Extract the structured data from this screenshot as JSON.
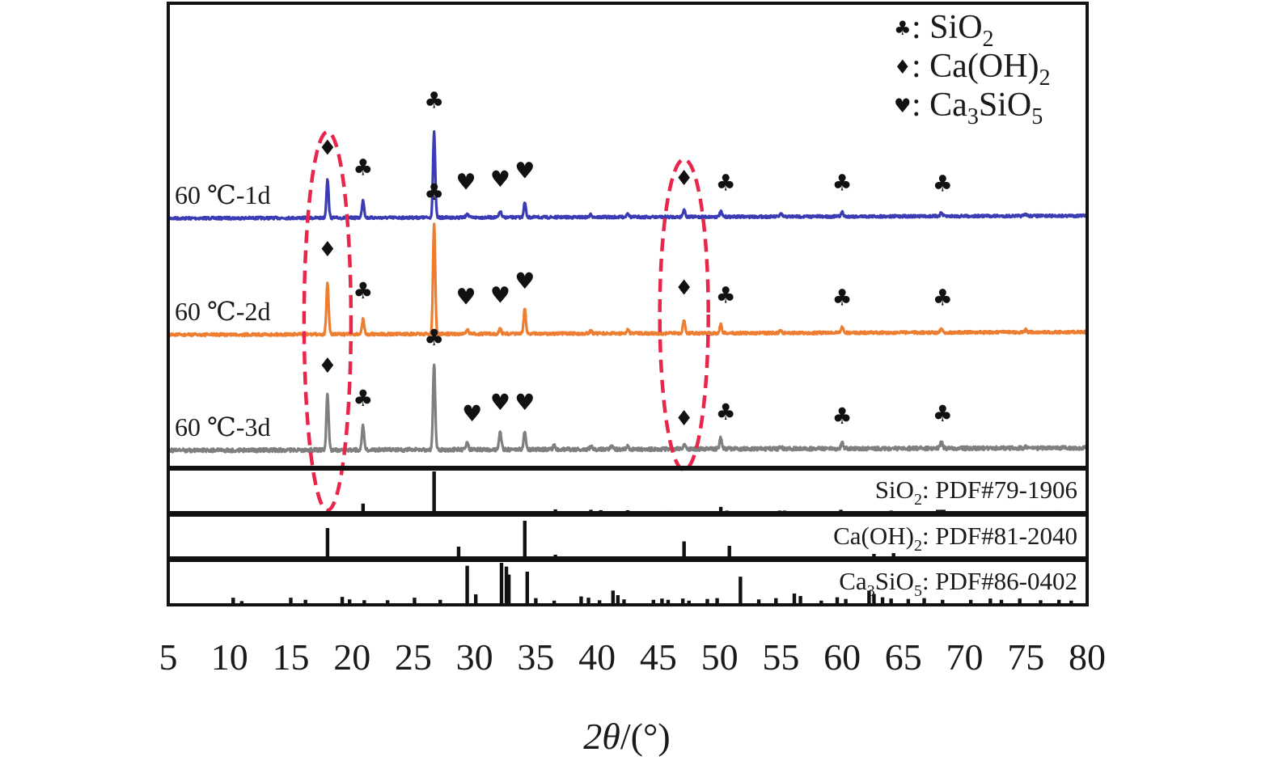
{
  "chart_data": {
    "type": "line",
    "xlabel_italic": "2θ",
    "xlabel_unit": "/(°)",
    "xlim": [
      5,
      80
    ],
    "x_ticks": [
      5,
      10,
      15,
      20,
      25,
      30,
      35,
      40,
      45,
      50,
      55,
      60,
      65,
      70,
      75,
      80
    ],
    "legend": [
      {
        "symbol": "♣",
        "base": ": SiO",
        "sub": "2"
      },
      {
        "symbol": "♦",
        "base": ": Ca(OH)",
        "sub": "2"
      },
      {
        "symbol": "♥",
        "base": ": Ca",
        "sub": "3",
        "mid": "SiO",
        "sub2": "5"
      }
    ],
    "series": [
      {
        "name": "60 ℃-1d",
        "color": "#3b3bb3",
        "peaks": [
          {
            "x": 18.0,
            "h": 0.45
          },
          {
            "x": 20.9,
            "h": 0.21
          },
          {
            "x": 26.7,
            "h": 1.0
          },
          {
            "x": 29.4,
            "h": 0.05
          },
          {
            "x": 32.1,
            "h": 0.07
          },
          {
            "x": 34.1,
            "h": 0.17
          },
          {
            "x": 39.5,
            "h": 0.03
          },
          {
            "x": 42.5,
            "h": 0.05
          },
          {
            "x": 47.1,
            "h": 0.09
          },
          {
            "x": 50.1,
            "h": 0.06
          },
          {
            "x": 55.0,
            "h": 0.03
          },
          {
            "x": 60.0,
            "h": 0.05
          },
          {
            "x": 68.1,
            "h": 0.04
          },
          {
            "x": 75.0,
            "h": 0.02
          }
        ],
        "markers": [
          {
            "x": 18.0,
            "symbol": "♦",
            "h": 0.75
          },
          {
            "x": 20.9,
            "symbol": "♣",
            "h": 0.51
          },
          {
            "x": 26.7,
            "symbol": "♣",
            "h": 1.3
          },
          {
            "x": 29.3,
            "symbol": "♥",
            "h": 0.34
          },
          {
            "x": 32.1,
            "symbol": "♥",
            "h": 0.37
          },
          {
            "x": 34.1,
            "symbol": "♥",
            "h": 0.47
          },
          {
            "x": 47.1,
            "symbol": "♦",
            "h": 0.39
          },
          {
            "x": 50.5,
            "symbol": "♣",
            "h": 0.33
          },
          {
            "x": 60.0,
            "symbol": "♣",
            "h": 0.33
          },
          {
            "x": 68.2,
            "symbol": "♣",
            "h": 0.32
          }
        ]
      },
      {
        "name": "60 ℃-2d",
        "color": "#ed7d31",
        "peaks": [
          {
            "x": 18.0,
            "h": 0.58
          },
          {
            "x": 20.9,
            "h": 0.17
          },
          {
            "x": 26.7,
            "h": 1.25
          },
          {
            "x": 29.4,
            "h": 0.05
          },
          {
            "x": 32.1,
            "h": 0.06
          },
          {
            "x": 34.1,
            "h": 0.28
          },
          {
            "x": 39.5,
            "h": 0.03
          },
          {
            "x": 42.5,
            "h": 0.04
          },
          {
            "x": 47.1,
            "h": 0.15
          },
          {
            "x": 50.1,
            "h": 0.1
          },
          {
            "x": 55.0,
            "h": 0.03
          },
          {
            "x": 60.0,
            "h": 0.07
          },
          {
            "x": 68.1,
            "h": 0.05
          },
          {
            "x": 75.0,
            "h": 0.03
          }
        ],
        "markers": [
          {
            "x": 18.0,
            "symbol": "♦",
            "h": 0.88
          },
          {
            "x": 20.9,
            "symbol": "♣",
            "h": 0.41
          },
          {
            "x": 26.7,
            "symbol": "♣",
            "h": 1.52
          },
          {
            "x": 29.3,
            "symbol": "♥",
            "h": 0.34
          },
          {
            "x": 32.1,
            "symbol": "♥",
            "h": 0.36
          },
          {
            "x": 34.1,
            "symbol": "♥",
            "h": 0.52
          },
          {
            "x": 47.1,
            "symbol": "♦",
            "h": 0.45
          },
          {
            "x": 50.5,
            "symbol": "♣",
            "h": 0.36
          },
          {
            "x": 60.0,
            "symbol": "♣",
            "h": 0.33
          },
          {
            "x": 68.2,
            "symbol": "♣",
            "h": 0.33
          }
        ]
      },
      {
        "name": "60 ℃-3d",
        "color": "#7f7f7f",
        "peaks": [
          {
            "x": 18.0,
            "h": 0.7
          },
          {
            "x": 20.9,
            "h": 0.3
          },
          {
            "x": 26.7,
            "h": 1.06
          },
          {
            "x": 29.4,
            "h": 0.08
          },
          {
            "x": 32.1,
            "h": 0.22
          },
          {
            "x": 34.1,
            "h": 0.22
          },
          {
            "x": 36.5,
            "h": 0.05
          },
          {
            "x": 39.5,
            "h": 0.04
          },
          {
            "x": 41.2,
            "h": 0.05
          },
          {
            "x": 42.5,
            "h": 0.04
          },
          {
            "x": 47.1,
            "h": 0.06
          },
          {
            "x": 50.1,
            "h": 0.15
          },
          {
            "x": 55.0,
            "h": 0.03
          },
          {
            "x": 60.0,
            "h": 0.07
          },
          {
            "x": 68.1,
            "h": 0.09
          },
          {
            "x": 75.0,
            "h": 0.02
          }
        ],
        "markers": [
          {
            "x": 18.0,
            "symbol": "♦",
            "h": 0.96
          },
          {
            "x": 20.9,
            "symbol": "♣",
            "h": 0.55
          },
          {
            "x": 26.7,
            "symbol": "♣",
            "h": 1.3
          },
          {
            "x": 29.8,
            "symbol": "♥",
            "h": 0.36
          },
          {
            "x": 32.1,
            "symbol": "♥",
            "h": 0.5
          },
          {
            "x": 34.1,
            "symbol": "♥",
            "h": 0.5
          },
          {
            "x": 47.1,
            "symbol": "♦",
            "h": 0.31
          },
          {
            "x": 50.5,
            "symbol": "♣",
            "h": 0.38
          },
          {
            "x": 60.0,
            "symbol": "♣",
            "h": 0.33
          },
          {
            "x": 68.2,
            "symbol": "♣",
            "h": 0.36
          }
        ]
      }
    ],
    "references": [
      {
        "label_pre": "SiO",
        "label_sub": "2",
        "label_post": "",
        "label_sub2": "",
        "label_tail": ": PDF#79-1906",
        "sticks": [
          [
            20.9,
            0.22
          ],
          [
            26.7,
            1.0
          ],
          [
            36.6,
            0.08
          ],
          [
            39.5,
            0.07
          ],
          [
            40.3,
            0.06
          ],
          [
            42.5,
            0.06
          ],
          [
            45.8,
            0.04
          ],
          [
            50.1,
            0.14
          ],
          [
            50.6,
            0.05
          ],
          [
            54.9,
            0.05
          ],
          [
            55.3,
            0.05
          ],
          [
            57.2,
            0.03
          ],
          [
            59.9,
            0.07
          ],
          [
            64.0,
            0.05
          ],
          [
            65.8,
            0.03
          ],
          [
            67.8,
            0.07
          ],
          [
            68.1,
            0.07
          ],
          [
            68.3,
            0.07
          ],
          [
            73.5,
            0.03
          ],
          [
            75.7,
            0.04
          ],
          [
            77.7,
            0.04
          ]
        ]
      },
      {
        "label_pre": "Ca(OH)",
        "label_sub": "2",
        "label_post": "",
        "label_sub2": "",
        "label_tail": ": PDF#81-2040",
        "sticks": [
          [
            18.0,
            0.74
          ],
          [
            28.7,
            0.28
          ],
          [
            34.1,
            0.92
          ],
          [
            36.6,
            0.08
          ],
          [
            47.1,
            0.41
          ],
          [
            50.8,
            0.3
          ],
          [
            54.3,
            0.04
          ],
          [
            59.4,
            0.04
          ],
          [
            62.6,
            0.1
          ],
          [
            64.2,
            0.12
          ],
          [
            71.8,
            0.04
          ],
          [
            79.2,
            0.03
          ],
          [
            79.8,
            0.04
          ]
        ]
      },
      {
        "label_pre": "Ca",
        "label_sub": "3",
        "label_post": "SiO",
        "label_sub2": "5",
        "label_tail": ": PDF#86-0402",
        "sticks": [
          [
            10.3,
            0.17
          ],
          [
            11.0,
            0.09
          ],
          [
            15.0,
            0.17
          ],
          [
            16.2,
            0.12
          ],
          [
            19.2,
            0.19
          ],
          [
            19.8,
            0.13
          ],
          [
            21.0,
            0.11
          ],
          [
            22.9,
            0.11
          ],
          [
            25.1,
            0.17
          ],
          [
            27.2,
            0.12
          ],
          [
            29.4,
            0.93
          ],
          [
            30.1,
            0.25
          ],
          [
            32.2,
            1.0
          ],
          [
            32.6,
            0.91
          ],
          [
            32.8,
            0.72
          ],
          [
            34.3,
            0.79
          ],
          [
            35.0,
            0.16
          ],
          [
            36.5,
            0.1
          ],
          [
            38.7,
            0.2
          ],
          [
            39.3,
            0.17
          ],
          [
            40.2,
            0.11
          ],
          [
            41.3,
            0.34
          ],
          [
            41.7,
            0.23
          ],
          [
            42.2,
            0.13
          ],
          [
            44.6,
            0.12
          ],
          [
            45.3,
            0.15
          ],
          [
            45.8,
            0.12
          ],
          [
            47.0,
            0.15
          ],
          [
            47.5,
            0.1
          ],
          [
            49.0,
            0.14
          ],
          [
            49.8,
            0.16
          ],
          [
            51.7,
            0.67
          ],
          [
            53.2,
            0.13
          ],
          [
            54.6,
            0.16
          ],
          [
            56.1,
            0.27
          ],
          [
            56.6,
            0.21
          ],
          [
            58.3,
            0.1
          ],
          [
            59.6,
            0.18
          ],
          [
            60.3,
            0.14
          ],
          [
            62.2,
            0.34
          ],
          [
            62.6,
            0.26
          ],
          [
            63.3,
            0.18
          ],
          [
            64.0,
            0.15
          ],
          [
            65.4,
            0.14
          ],
          [
            66.7,
            0.16
          ],
          [
            68.2,
            0.12
          ],
          [
            70.5,
            0.12
          ],
          [
            72.1,
            0.15
          ],
          [
            73.0,
            0.12
          ],
          [
            74.5,
            0.15
          ],
          [
            76.2,
            0.11
          ],
          [
            77.7,
            0.12
          ],
          [
            78.7,
            0.1
          ]
        ]
      }
    ],
    "highlight_ellipses": [
      {
        "x_center": 18.0,
        "color": "#e8254b"
      },
      {
        "x_center": 47.1,
        "color": "#e8254b"
      }
    ]
  }
}
